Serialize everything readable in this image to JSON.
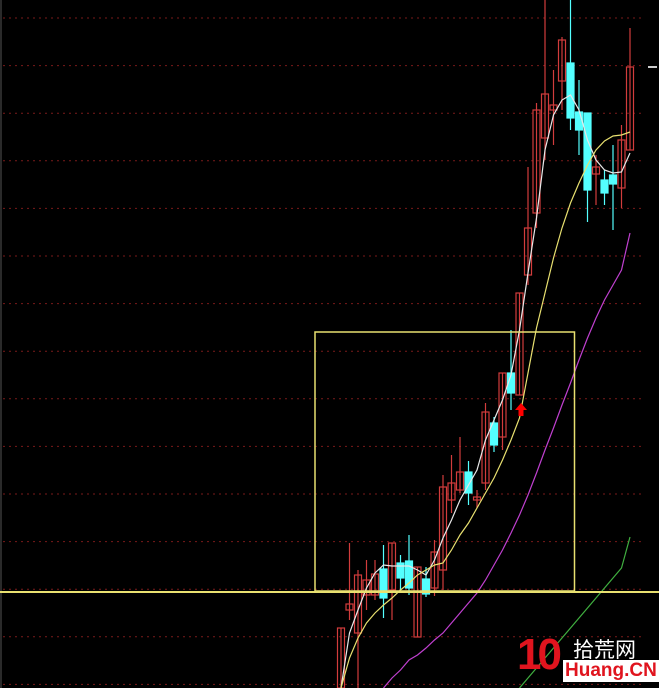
{
  "chart_data": {
    "type": "candlestick",
    "title": "",
    "xlabel": "",
    "ylabel": "",
    "ylim": [
      0,
      68.8
    ],
    "grid": true,
    "colors": {
      "up": "#d23c3c",
      "down": "#54ffff",
      "ma_white": "#e8e8e8",
      "ma_yellow": "#e8e070",
      "ma_purple": "#c040d0",
      "ma_green": "#40b040",
      "box": "#e8e070",
      "grid": "#7a1a1a",
      "signal_arrow": "#ff0000"
    },
    "candles": [
      {
        "o": 0.0,
        "c": 6.0,
        "h": 6.0,
        "l": 0.0
      },
      {
        "o": 7.8,
        "c": 8.4,
        "h": 14.5,
        "l": 6.8
      },
      {
        "o": 5.5,
        "c": 11.3,
        "h": 11.8,
        "l": 0.0
      },
      {
        "o": 9.3,
        "c": 10.8,
        "h": 12.8,
        "l": 7.8
      },
      {
        "o": 9.3,
        "c": 11.4,
        "h": 12.8,
        "l": 8.8
      },
      {
        "o": 11.9,
        "c": 9.0,
        "h": 14.3,
        "l": 7.0
      },
      {
        "o": 9.8,
        "c": 14.5,
        "h": 14.5,
        "l": 6.8
      },
      {
        "o": 12.5,
        "c": 11.0,
        "h": 13.3,
        "l": 9.8
      },
      {
        "o": 12.7,
        "c": 10.0,
        "h": 15.3,
        "l": 9.3
      },
      {
        "o": 5.1,
        "c": 12.1,
        "h": 12.1,
        "l": 5.1
      },
      {
        "o": 10.9,
        "c": 9.4,
        "h": 12.1,
        "l": 9.1
      },
      {
        "o": 10.0,
        "c": 13.6,
        "h": 14.8,
        "l": 9.2
      },
      {
        "o": 11.8,
        "c": 20.1,
        "h": 21.3,
        "l": 9.8
      },
      {
        "o": 18.8,
        "c": 20.5,
        "h": 23.3,
        "l": 17.5
      },
      {
        "o": 19.8,
        "c": 21.6,
        "h": 25.1,
        "l": 19.5
      },
      {
        "o": 21.6,
        "c": 19.5,
        "h": 22.7,
        "l": 18.3
      },
      {
        "o": 18.8,
        "c": 19.1,
        "h": 19.8,
        "l": 18.0
      },
      {
        "o": 20.5,
        "c": 27.6,
        "h": 28.5,
        "l": 19.8
      },
      {
        "o": 26.5,
        "c": 24.3,
        "h": 27.1,
        "l": 23.6
      },
      {
        "o": 25.1,
        "c": 31.5,
        "h": 31.5,
        "l": 23.8
      },
      {
        "o": 31.5,
        "c": 29.5,
        "h": 35.8,
        "l": 27.8
      },
      {
        "o": 29.3,
        "c": 39.5,
        "h": 39.5,
        "l": 29.3
      },
      {
        "o": 41.3,
        "c": 46.0,
        "h": 52.1,
        "l": 40.3
      },
      {
        "o": 47.5,
        "c": 57.8,
        "h": 58.5,
        "l": 46.0
      },
      {
        "o": 55.0,
        "c": 59.4,
        "h": 68.8,
        "l": 52.8
      },
      {
        "o": 57.8,
        "c": 58.3,
        "h": 61.8,
        "l": 54.3
      },
      {
        "o": 60.7,
        "c": 64.8,
        "h": 65.1,
        "l": 57.8
      },
      {
        "o": 62.5,
        "c": 57.0,
        "h": 68.8,
        "l": 55.8
      },
      {
        "o": 57.6,
        "c": 55.8,
        "h": 60.8,
        "l": 53.3
      },
      {
        "o": 57.5,
        "c": 49.8,
        "h": 57.5,
        "l": 46.6
      },
      {
        "o": 51.4,
        "c": 52.1,
        "h": 53.3,
        "l": 48.3
      },
      {
        "o": 50.8,
        "c": 49.5,
        "h": 51.8,
        "l": 48.3
      },
      {
        "o": 51.3,
        "c": 50.4,
        "h": 54.3,
        "l": 45.8
      },
      {
        "o": 50.0,
        "c": 54.8,
        "h": 56.3,
        "l": 48.0
      },
      {
        "o": 53.8,
        "c": 62.1,
        "h": 66.0,
        "l": 53.8
      }
    ],
    "ma_lines": [
      {
        "color_key": "ma_white",
        "values": [
          0.0,
          5.5,
          7.8,
          10.0,
          11.5,
          12.3,
          12.2,
          12.2,
          12.2,
          11.8,
          11.3,
          12.8,
          15.0,
          16.8,
          18.8,
          20.3,
          21.8,
          24.8,
          26.8,
          28.8,
          31.3,
          35.8,
          41.5,
          47.0,
          53.8,
          57.3,
          58.8,
          59.3,
          57.8,
          54.8,
          52.8,
          51.8,
          51.5,
          51.6,
          53.5
        ]
      },
      {
        "color_key": "ma_yellow",
        "values": [
          0.0,
          3.0,
          5.0,
          6.5,
          7.5,
          8.3,
          9.0,
          9.8,
          10.5,
          11.3,
          11.8,
          12.3,
          12.5,
          13.8,
          15.3,
          16.5,
          18.0,
          19.5,
          21.0,
          22.8,
          24.8,
          27.0,
          31.5,
          36.0,
          39.5,
          43.0,
          46.0,
          48.5,
          50.5,
          52.3,
          53.8,
          54.7,
          55.2,
          55.3,
          55.6
        ]
      },
      {
        "color_key": "ma_purple",
        "values": [
          null,
          null,
          null,
          null,
          null,
          0.0,
          1.0,
          1.8,
          2.8,
          3.3,
          4.0,
          4.8,
          5.5,
          6.5,
          7.5,
          8.5,
          9.5,
          10.8,
          12.3,
          13.8,
          15.5,
          17.3,
          19.3,
          21.5,
          23.8,
          26.0,
          28.3,
          30.5,
          32.8,
          35.0,
          37.0,
          38.8,
          40.3,
          41.8,
          45.5
        ]
      },
      {
        "color_key": "ma_green",
        "values": [
          null,
          null,
          null,
          null,
          null,
          null,
          null,
          null,
          null,
          null,
          null,
          null,
          null,
          null,
          null,
          null,
          null,
          null,
          null,
          null,
          null,
          0.0,
          1.0,
          2.0,
          3.0,
          4.0,
          5.0,
          6.0,
          7.0,
          8.0,
          9.0,
          10.0,
          11.0,
          12.0,
          15.1
        ]
      }
    ],
    "highlight_box": {
      "from_index": 0,
      "to_index": 27,
      "low": 9.7,
      "high": 35.6
    },
    "support_line": 9.7,
    "signal_arrow_index": 21
  },
  "watermark": {
    "number": "10",
    "site_cn": "拾荒网",
    "site_en": "Huang.CN"
  }
}
